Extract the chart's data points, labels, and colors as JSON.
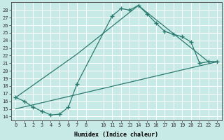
{
  "xlabel": "Humidex (Indice chaleur)",
  "bg_color": "#c8eae6",
  "grid_color": "#b0ddd8",
  "line_color": "#2a7a70",
  "xlim": [
    -0.5,
    23.5
  ],
  "ylim": [
    13.5,
    29.0
  ],
  "xticks": [
    0,
    1,
    2,
    3,
    4,
    5,
    6,
    7,
    8,
    10,
    11,
    12,
    13,
    14,
    15,
    16,
    17,
    18,
    19,
    20,
    21,
    22,
    23
  ],
  "yticks": [
    14,
    15,
    16,
    17,
    18,
    19,
    20,
    21,
    22,
    23,
    24,
    25,
    26,
    27,
    28
  ],
  "main_x": [
    0,
    1,
    2,
    3,
    4,
    5,
    6,
    7,
    11,
    12,
    13,
    14,
    15,
    16,
    17,
    18,
    19,
    20,
    21,
    22,
    23
  ],
  "main_y": [
    16.5,
    16.0,
    15.2,
    14.7,
    14.2,
    14.3,
    15.2,
    18.3,
    27.2,
    28.2,
    28.0,
    28.6,
    27.5,
    26.3,
    25.2,
    24.8,
    24.5,
    23.8,
    21.0,
    21.2,
    21.2
  ],
  "line2_x": [
    0,
    7,
    14,
    22,
    23
  ],
  "line2_y": [
    16.5,
    22.2,
    28.6,
    21.2,
    21.2
  ],
  "line3_x": [
    0,
    23
  ],
  "line3_y": [
    15.0,
    21.2
  ]
}
